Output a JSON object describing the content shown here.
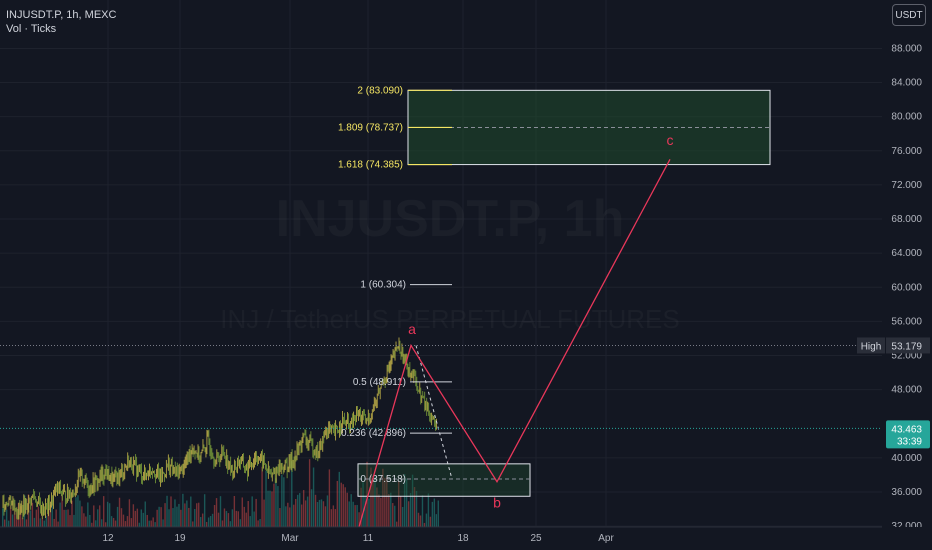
{
  "header": {
    "symbol_line": "INJUSDT.P, 1h, MEXC",
    "indicator": "Vol · Ticks"
  },
  "currency_button": "USDT",
  "watermark": {
    "symbol": "INJUSDT.P, 1h",
    "subtitle": "INJ / TetherUS PERPETUAL FUTURES"
  },
  "colors": {
    "background": "#131722",
    "grid": "#1e222d",
    "candle_up": "#26a69a",
    "candle_down": "#ef5350",
    "fib_label": "#f5e663",
    "wave": "#e8375a",
    "last_price": "#26a69a",
    "high_label": "#1e222d"
  },
  "chart_data": {
    "type": "line",
    "title": "INJUSDT.P, 1h, MEXC",
    "y_axis": {
      "min": 31,
      "max": 90,
      "ticks": [
        "88.000",
        "84.000",
        "80.000",
        "76.000",
        "72.000",
        "68.000",
        "64.000",
        "60.000",
        "56.000",
        "52.000",
        "48.000",
        "40.000",
        "36.000",
        "32.000"
      ]
    },
    "x_axis": {
      "ticks": [
        "12",
        "19",
        "Mar",
        "11",
        "18",
        "25",
        "Apr"
      ]
    },
    "price_path": {
      "x_index": [
        0,
        8,
        16,
        24,
        32,
        40,
        48,
        56,
        64,
        72,
        80,
        88,
        96,
        104,
        112,
        120,
        128,
        136,
        144,
        152,
        160,
        168,
        176,
        184,
        192,
        200,
        208,
        216,
        224,
        232,
        240,
        248,
        256,
        264,
        272,
        280,
        288,
        296,
        304,
        312,
        320,
        328,
        336,
        344,
        352,
        360,
        368,
        376,
        384,
        392,
        400,
        408,
        416,
        424,
        432,
        440
      ],
      "close": [
        34.6,
        35.2,
        33.8,
        34.3,
        35.6,
        33.9,
        34.4,
        36.5,
        35.5,
        36.1,
        37.9,
        36.6,
        37.2,
        38.4,
        37.3,
        38.1,
        39.6,
        38.7,
        37.9,
        38.9,
        37.6,
        39.2,
        38.2,
        39.0,
        41.3,
        40.1,
        42.0,
        39.6,
        40.8,
        38.3,
        39.7,
        38.6,
        40.3,
        39.5,
        37.7,
        38.9,
        39.1,
        40.0,
        42.4,
        41.5,
        40.6,
        43.4,
        42.8,
        44.3,
        43.7,
        45.2,
        44.1,
        46.1,
        48.9,
        50.7,
        53.2,
        51.2,
        49.5,
        47.0,
        45.2,
        43.5
      ]
    },
    "fib_levels": [
      {
        "label": "2 (83.090)",
        "value": 83.09
      },
      {
        "label": "1.809 (78.737)",
        "value": 78.737
      },
      {
        "label": "1.618 (74.385)",
        "value": 74.385
      },
      {
        "label": "1 (60.304)",
        "value": 60.304
      },
      {
        "label": "0.5 (48.911)",
        "value": 48.911
      },
      {
        "label": "0.236 (42.896)",
        "value": 42.896
      },
      {
        "label": "0 (37.518)",
        "value": 37.518
      }
    ],
    "wave_labels": [
      "a",
      "b",
      "c"
    ],
    "wave_path": [
      {
        "label": "",
        "value": 31.5
      },
      {
        "label": "a",
        "value": 53.179
      },
      {
        "label": "b",
        "value": 37.2
      },
      {
        "label": "c",
        "value": 75.0
      }
    ],
    "high": {
      "label": "High",
      "value": "53.179"
    },
    "last_price": {
      "value": "43.463",
      "countdown": "33:39"
    }
  }
}
